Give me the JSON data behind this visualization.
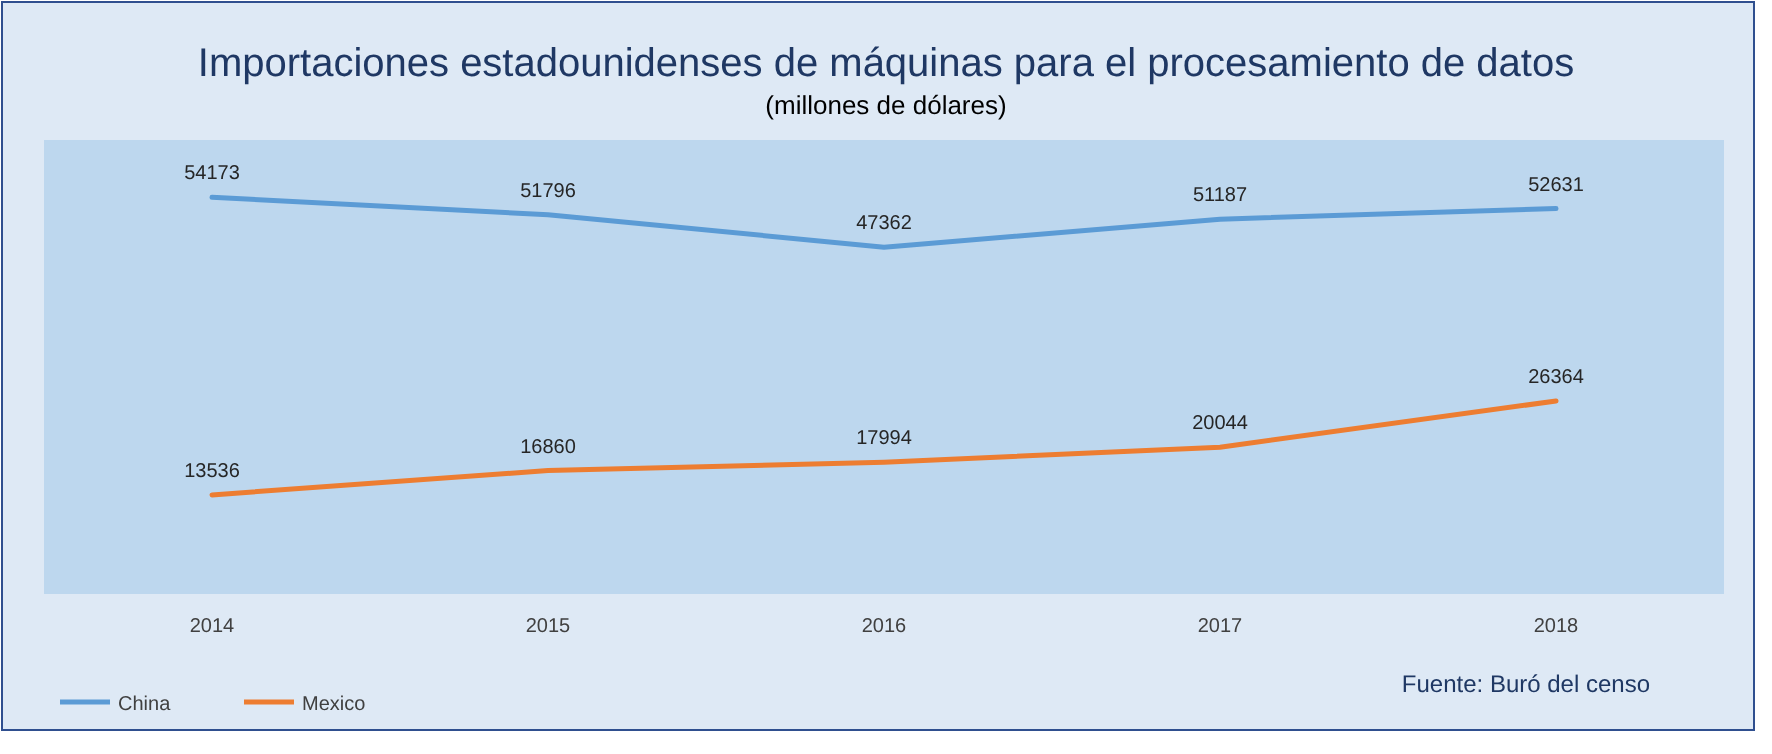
{
  "chart_data": {
    "type": "line",
    "title": "Importaciones estadounidenses de máquinas para el procesamiento de datos",
    "subtitle": "(millones de dólares)",
    "categories": [
      "2014",
      "2015",
      "2016",
      "2017",
      "2018"
    ],
    "series": [
      {
        "name": "China",
        "color": "#5b9bd5",
        "values": [
          54173,
          51796,
          47362,
          51187,
          52631
        ]
      },
      {
        "name": "Mexico",
        "color": "#ed7d31",
        "values": [
          13536,
          16860,
          17994,
          20044,
          26364
        ]
      }
    ],
    "ylim": [
      0,
      62000
    ],
    "data_labels": true,
    "legend": "bottom left",
    "grid": false,
    "marker": "none",
    "line_style": "solid",
    "tick_labels": "x",
    "annotations": [
      "Fuente: Buró del censo"
    ]
  }
}
